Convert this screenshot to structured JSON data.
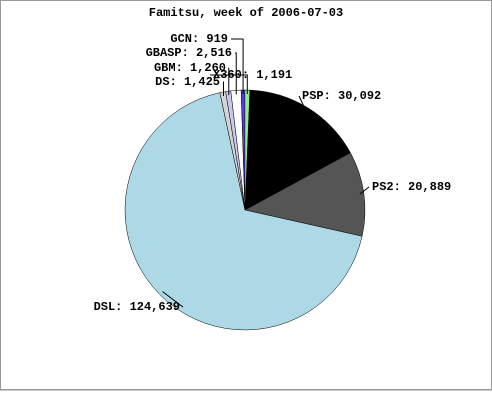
{
  "chart_data": {
    "type": "pie",
    "title": "Famitsu, week of 2006-07-03",
    "categories": [
      "PSP",
      "PS2",
      "DSL",
      "DS",
      "GBM",
      "GBASP",
      "GCN",
      "X360"
    ],
    "values": [
      30092,
      20889,
      124639,
      1425,
      1260,
      2516,
      919,
      1191
    ],
    "value_labels": [
      "30,092",
      "20,889",
      "124,639",
      "1,425",
      "1,260",
      "2,516",
      "919",
      "1,191"
    ],
    "colors": [
      "#000000",
      "#555555",
      "#add8e6",
      "#d3d3d3",
      "#c8c8f0",
      "#ffffff",
      "#5a3ce0",
      "#90ee90"
    ]
  }
}
